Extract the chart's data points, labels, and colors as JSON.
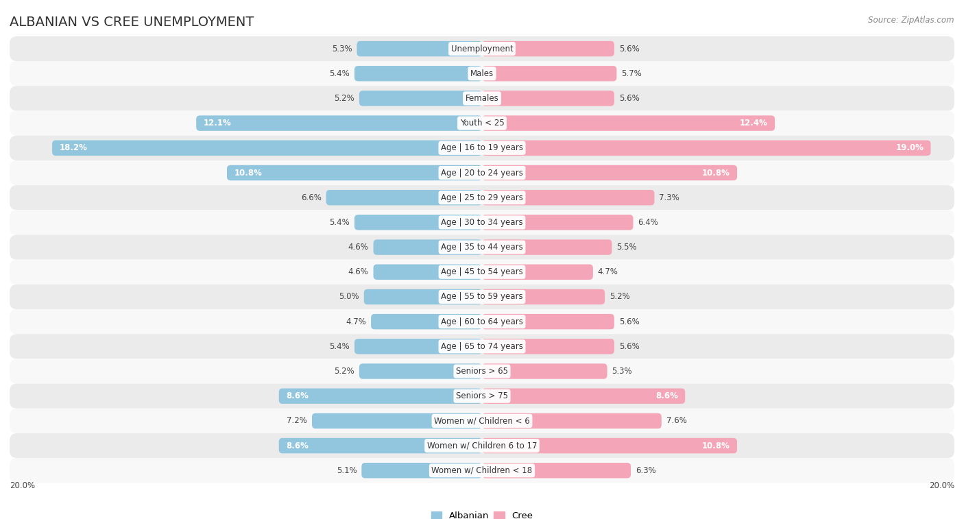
{
  "title": "ALBANIAN VS CREE UNEMPLOYMENT",
  "source": "Source: ZipAtlas.com",
  "categories": [
    "Unemployment",
    "Males",
    "Females",
    "Youth < 25",
    "Age | 16 to 19 years",
    "Age | 20 to 24 years",
    "Age | 25 to 29 years",
    "Age | 30 to 34 years",
    "Age | 35 to 44 years",
    "Age | 45 to 54 years",
    "Age | 55 to 59 years",
    "Age | 60 to 64 years",
    "Age | 65 to 74 years",
    "Seniors > 65",
    "Seniors > 75",
    "Women w/ Children < 6",
    "Women w/ Children 6 to 17",
    "Women w/ Children < 18"
  ],
  "albanian": [
    5.3,
    5.4,
    5.2,
    12.1,
    18.2,
    10.8,
    6.6,
    5.4,
    4.6,
    4.6,
    5.0,
    4.7,
    5.4,
    5.2,
    8.6,
    7.2,
    8.6,
    5.1
  ],
  "cree": [
    5.6,
    5.7,
    5.6,
    12.4,
    19.0,
    10.8,
    7.3,
    6.4,
    5.5,
    4.7,
    5.2,
    5.6,
    5.6,
    5.3,
    8.6,
    7.6,
    10.8,
    6.3
  ],
  "albanian_color": "#92c5de",
  "cree_color": "#f4a6b8",
  "row_color_even": "#ebebeb",
  "row_color_odd": "#f8f8f8",
  "bar_height": 0.62,
  "xlim": 20.0,
  "value_fontsize": 8.5,
  "label_fontsize": 8.5,
  "title_fontsize": 14,
  "source_fontsize": 8.5
}
